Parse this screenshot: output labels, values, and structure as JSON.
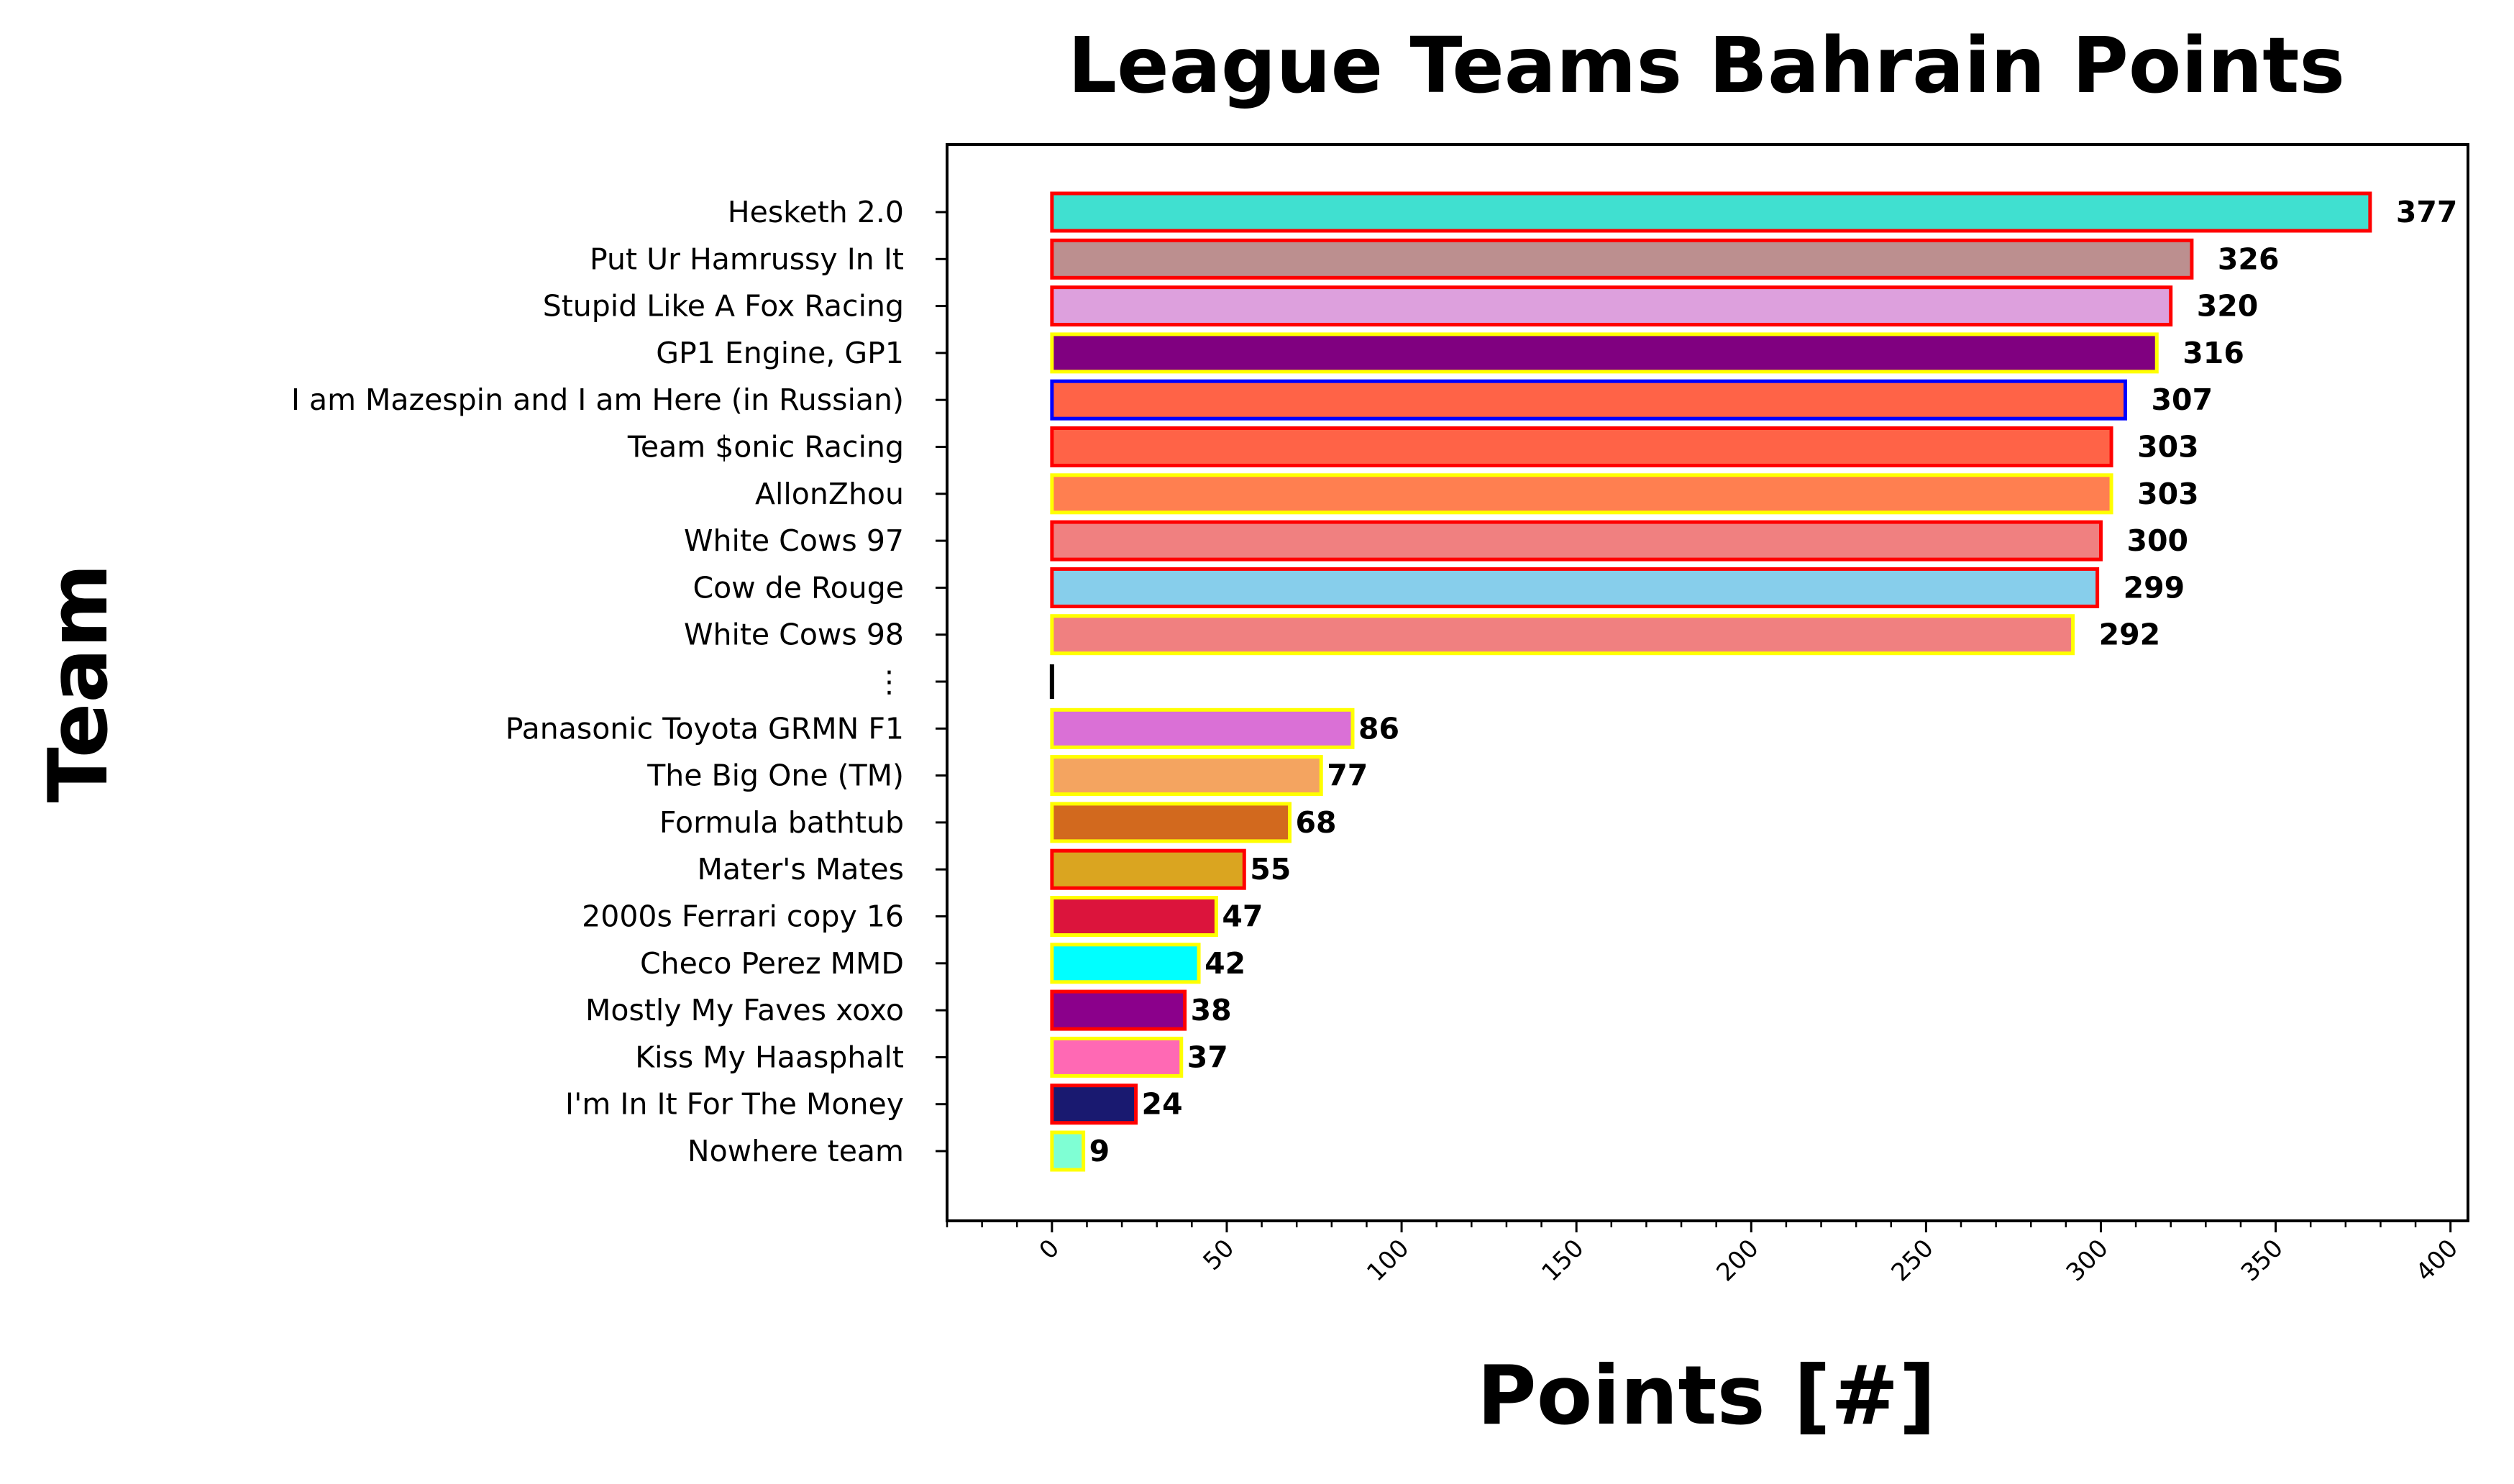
{
  "chart_data": {
    "type": "bar",
    "orientation": "horizontal",
    "title": "League Teams Bahrain Points",
    "xlabel": "Points [#]",
    "ylabel": "Team",
    "xlim": [
      -30,
      405
    ],
    "xticks": [
      0,
      50,
      100,
      150,
      200,
      250,
      300,
      350,
      400
    ],
    "xminor_step": 10,
    "grid": false,
    "legend": "none",
    "categories": [
      "Hesketh 2.0",
      "Put Ur Hamrussy In It",
      "Stupid Like A Fox Racing",
      "GP1 Engine, GP1",
      "I am Mazespin and I am Here (in Russian)",
      "Team $onic Racing",
      "AllonZhou",
      "White Cows 97",
      "Cow de Rouge",
      "White Cows 98",
      "⋮",
      "Panasonic Toyota GRMN F1",
      "The Big One (TM)",
      "Formula bathtub",
      "Mater's Mates",
      "2000s Ferrari copy 16",
      "Checo Perez MMD",
      "Mostly My Faves xoxo",
      "Kiss My Haasphalt",
      "I'm In It For The Money",
      "Nowhere team"
    ],
    "values": [
      377,
      326,
      320,
      316,
      307,
      303,
      303,
      300,
      299,
      292,
      null,
      86,
      77,
      68,
      55,
      47,
      42,
      38,
      37,
      24,
      9
    ],
    "value_labels": [
      "377",
      "326",
      "320",
      "316",
      "307",
      "303",
      "303",
      "300",
      "299",
      "292",
      "",
      "86",
      "77",
      "68",
      "55",
      "47",
      "42",
      "38",
      "37",
      "24",
      "9"
    ],
    "fill_colors": [
      "#40e0d0",
      "#bc8f8f",
      "#dda0dd",
      "#800080",
      "#ff6347",
      "#ff6347",
      "#ff7f50",
      "#f08080",
      "#87ceeb",
      "#f08080",
      null,
      "#da70d6",
      "#f4a460",
      "#d2691e",
      "#daa520",
      "#dc143c",
      "#00ffff",
      "#8b008b",
      "#ff69b4",
      "#191970",
      "#7fffd4"
    ],
    "edge_colors": [
      "#ff0000",
      "#ff0000",
      "#ff0000",
      "#ffff00",
      "#0000ff",
      "#ff0000",
      "#ffff00",
      "#ff0000",
      "#ff0000",
      "#ffff00",
      null,
      "#ffff00",
      "#ffff00",
      "#ffff00",
      "#ff0000",
      "#ffff00",
      "#ffff00",
      "#ff0000",
      "#ffff00",
      "#ff0000",
      "#ffff00"
    ]
  }
}
